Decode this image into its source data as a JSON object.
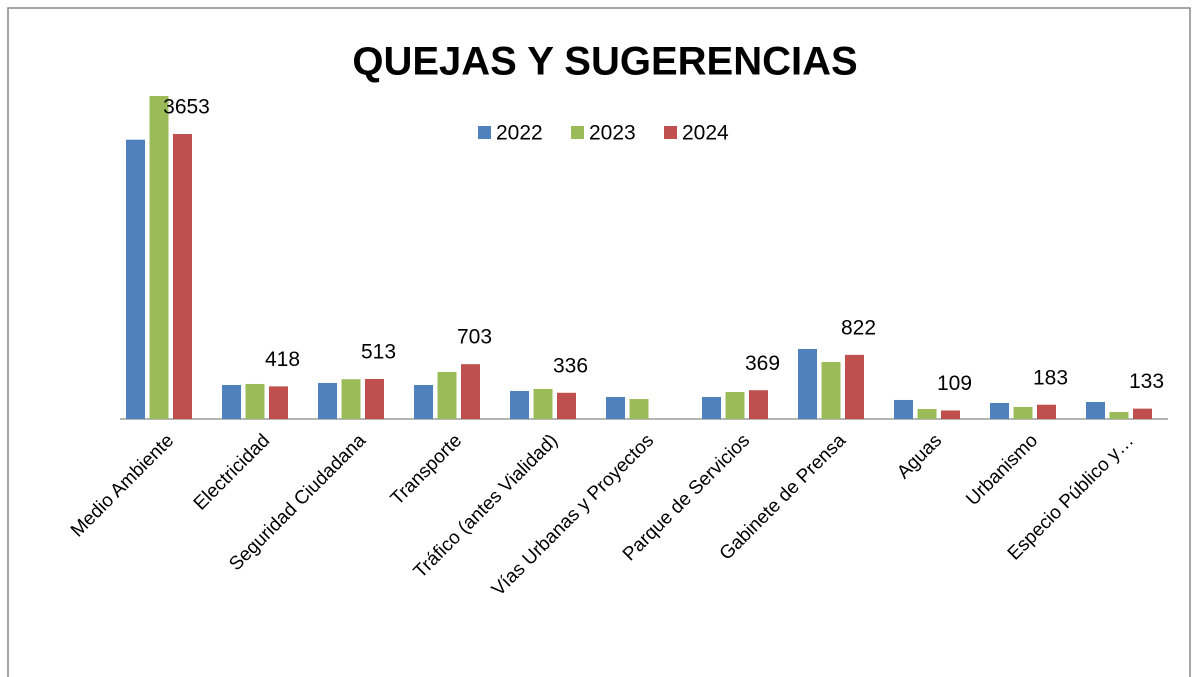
{
  "chart_data": {
    "type": "bar",
    "title": "QUEJAS Y SUGERENCIAS",
    "categories": [
      "Medio Ambiente",
      "Electricidad",
      "Seguridad Ciudadana",
      "Transporte",
      "Tráfico (antes Vialidad)",
      "Vías Urbanas y Proyectos",
      "Parque de Servicios",
      "Gabinete de Prensa",
      "Aguas",
      "Urbanismo",
      "Especio Público y…"
    ],
    "series": [
      {
        "name": "2022",
        "color": "#4f81bd",
        "values": [
          3580,
          436,
          462,
          436,
          359,
          282,
          282,
          897,
          244,
          205,
          218
        ]
      },
      {
        "name": "2023",
        "color": "#9bbb59",
        "values": [
          4140,
          449,
          510,
          603,
          385,
          256,
          346,
          731,
          128,
          154,
          90
        ]
      },
      {
        "name": "2024",
        "color": "#c0504d",
        "values": [
          3653,
          418,
          513,
          703,
          336,
          null,
          369,
          822,
          109,
          183,
          133
        ]
      }
    ],
    "data_labels_series": "2024",
    "legend": "top"
  }
}
